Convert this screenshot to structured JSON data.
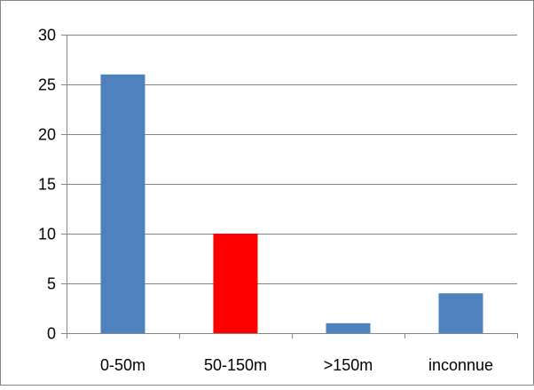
{
  "chart_data": {
    "type": "bar",
    "categories": [
      "0-50m",
      "50-150m",
      ">150m",
      "inconnue"
    ],
    "values": [
      26,
      10,
      1,
      4
    ],
    "bar_colors": [
      "#4F81BD",
      "#FF0000",
      "#4F81BD",
      "#4F81BD"
    ],
    "ylim": [
      0,
      30
    ],
    "yticks": [
      0,
      5,
      10,
      15,
      20,
      25,
      30
    ],
    "ytick_labels": [
      "0",
      "5",
      "10",
      "15",
      "20",
      "25",
      "30"
    ],
    "grid": true,
    "legend": "none",
    "colors": {
      "gridline": "#868686",
      "border": "#868686",
      "axis": "#868686"
    }
  }
}
